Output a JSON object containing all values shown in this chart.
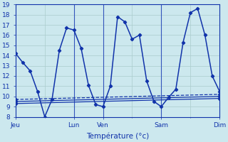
{
  "background_color": "#cce8ee",
  "grid_color": "#aacccc",
  "line_color": "#1133aa",
  "xlabel": "Température (°c)",
  "ylim": [
    8,
    19
  ],
  "yticks": [
    8,
    9,
    10,
    11,
    12,
    13,
    14,
    15,
    16,
    17,
    18,
    19
  ],
  "xtick_labels": [
    "Jeu",
    "Lun",
    "Ven",
    "Sam",
    "Dim"
  ],
  "xtick_pos": [
    0,
    48,
    72,
    120,
    168
  ],
  "total_hours": 168,
  "series": [
    {
      "x": [
        0,
        6,
        12,
        18,
        24,
        30,
        36,
        42,
        48,
        54,
        60,
        66,
        72,
        78,
        84,
        90,
        96,
        102,
        108,
        114,
        120,
        126,
        132,
        138,
        144,
        150,
        156,
        162,
        168
      ],
      "y": [
        14.2,
        13.3,
        12.5,
        10.5,
        8.0,
        9.7,
        14.5,
        16.7,
        16.5,
        14.7,
        11.1,
        9.2,
        9.0,
        11.0,
        17.8,
        17.3,
        15.6,
        16.0,
        11.5,
        9.5,
        9.0,
        9.9,
        10.7,
        15.3,
        18.2,
        18.6,
        16.0,
        12.0,
        10.5
      ],
      "style": "-",
      "marker": "D",
      "markersize": 2.2,
      "linewidth": 1.1
    },
    {
      "x": [
        0,
        168
      ],
      "y": [
        9.7,
        10.2
      ],
      "style": "--",
      "marker": "D",
      "markersize": 2.2,
      "linewidth": 0.9
    },
    {
      "x": [
        0,
        168
      ],
      "y": [
        9.5,
        10.0
      ],
      "style": "-",
      "marker": "D",
      "markersize": 2.2,
      "linewidth": 0.9
    },
    {
      "x": [
        0,
        168
      ],
      "y": [
        9.3,
        9.8
      ],
      "style": "-",
      "marker": "D",
      "markersize": 2.2,
      "linewidth": 0.9
    }
  ],
  "vline_positions": [
    48,
    72,
    120
  ],
  "vline_color": "#3355bb",
  "tick_label_fontsize": 6.5,
  "xlabel_fontsize": 7.5
}
